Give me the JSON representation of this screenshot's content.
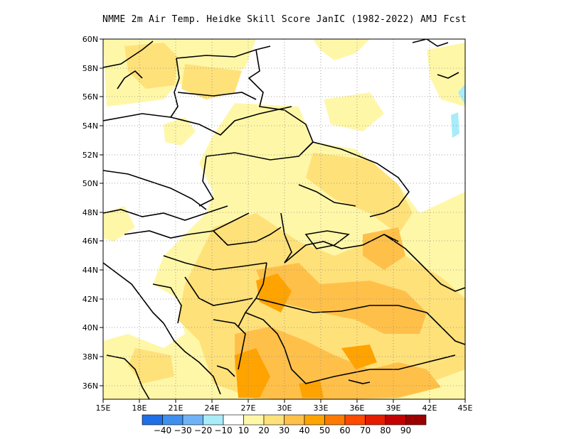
{
  "title": "NMME  2m Air Temp. Heidke Skill Score JanIC (1982-2022) AMJ Fcst",
  "map": {
    "lon_range": [
      15,
      45
    ],
    "lat_range": [
      35,
      60
    ],
    "lon_ticks": [
      "15E",
      "18E",
      "21E",
      "24E",
      "27E",
      "30E",
      "33E",
      "36E",
      "39E",
      "42E",
      "45E"
    ],
    "lat_ticks": [
      "36N",
      "38N",
      "40N",
      "42N",
      "44N",
      "46N",
      "48N",
      "50N",
      "52N",
      "54N",
      "56N",
      "58N",
      "60N"
    ],
    "grid": "dotted"
  },
  "colorbar": {
    "labels": [
      "-40",
      "-30",
      "-20",
      "-10",
      "10",
      "20",
      "30",
      "40",
      "50",
      "60",
      "70",
      "80",
      "90"
    ],
    "colors": [
      "#1f6fe6",
      "#3f8fee",
      "#6fb3f6",
      "#a9ecf9",
      "#ffffff",
      "#fff7a8",
      "#ffe17a",
      "#ffc04a",
      "#ffa300",
      "#ff7a00",
      "#ff4a00",
      "#e61c00",
      "#c40000",
      "#9a0000"
    ]
  }
}
